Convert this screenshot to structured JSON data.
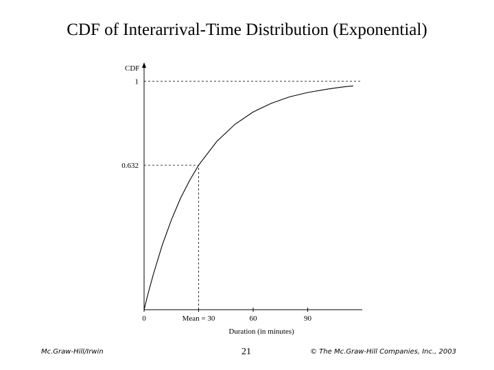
{
  "slide": {
    "title": "CDF of Interarrival-Time Distribution (Exponential)",
    "footer_left": "Mc.Graw-Hill/Irwin",
    "page_number": "21",
    "footer_right": "© The Mc.Graw-Hill Companies, Inc., 2003"
  },
  "chart_data": {
    "type": "line",
    "title": "",
    "xlabel": "Duration (in minutes)",
    "ylabel": "CDF",
    "xlim": [
      0,
      120
    ],
    "ylim": [
      0,
      1.07
    ],
    "xticks": [
      {
        "value": 0,
        "label": "0"
      },
      {
        "value": 30,
        "label": "Mean = 30"
      },
      {
        "value": 60,
        "label": "60"
      },
      {
        "value": 90,
        "label": "90"
      }
    ],
    "yticks": [
      {
        "value": 0.632,
        "label": "0.632"
      },
      {
        "value": 1,
        "label": "1"
      }
    ],
    "series": [
      {
        "values_x": [
          0,
          2,
          5,
          10,
          15,
          20,
          25,
          30,
          40,
          50,
          60,
          70,
          80,
          90,
          100,
          105,
          110,
          115
        ],
        "values_y": [
          0,
          0.064,
          0.153,
          0.283,
          0.393,
          0.487,
          0.565,
          0.632,
          0.736,
          0.811,
          0.865,
          0.903,
          0.931,
          0.95,
          0.964,
          0.97,
          0.975,
          0.979
        ]
      }
    ],
    "reference_lines": [
      {
        "orientation": "horizontal",
        "value": 1,
        "style": "dashed"
      },
      {
        "orientation": "horizontal",
        "value": 0.632,
        "x_end": 30,
        "style": "dashed"
      },
      {
        "orientation": "vertical",
        "value": 30,
        "y_end": 0.632,
        "style": "dashed"
      }
    ],
    "grid": false,
    "legend": "none"
  }
}
